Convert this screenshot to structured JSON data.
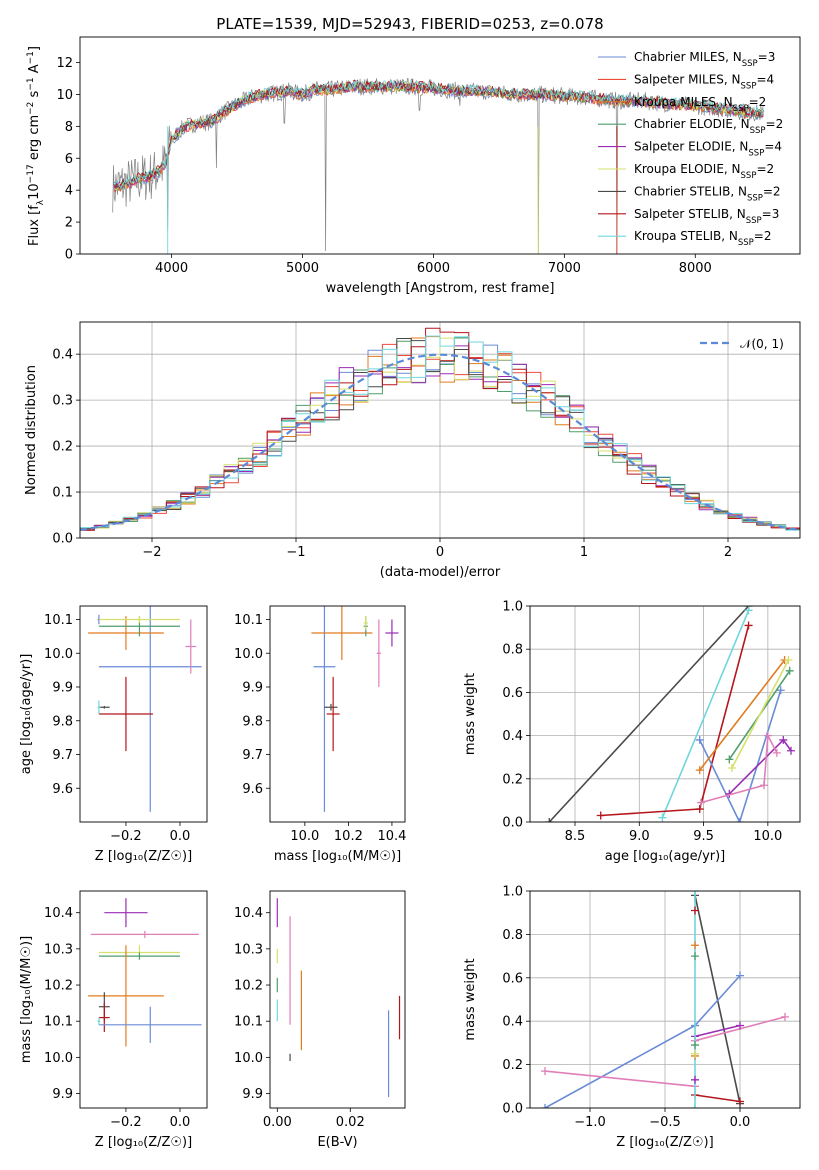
{
  "title": "PLATE=1539, MJD=52943, FIBERID=0253, z=0.078",
  "colors": {
    "Chabrier MILES": "#6a8bd6",
    "Salpeter MILES": "#ee4a3a",
    "Kroupa MILES": "#e07b1f",
    "Chabrier ELODIE": "#4f9e6b",
    "Salpeter ELODIE": "#9a2cb5",
    "Kroupa ELODIE": "#d6e06a",
    "Chabrier STELIB": "#4a4a4a",
    "Salpeter STELIB": "#b5161b",
    "Kroupa STELIB": "#6fd6dc",
    "pink": "#e07eb8",
    "data": "#808080",
    "normal": "#5b8ad8"
  },
  "chart_data": [
    {
      "id": "spectrum",
      "type": "line",
      "title": "PLATE=1539, MJD=52943, FIBERID=0253, z=0.078",
      "xlabel": "wavelength [Angstrom, rest frame]",
      "ylabel_parts": [
        "Flux [f",
        "λ",
        "10",
        "−17",
        " erg cm",
        "−2",
        " s",
        "−1",
        " A",
        "−1",
        "]"
      ],
      "xlim": [
        3300,
        8800
      ],
      "ylim": [
        0,
        13.6
      ],
      "xticks": [
        4000,
        5000,
        6000,
        7000,
        8000
      ],
      "yticks": [
        0,
        2,
        4,
        6,
        8,
        10,
        12
      ],
      "grid": false,
      "legend_position": "right",
      "legend": [
        {
          "name": "Chabrier MILES",
          "nssp": "3"
        },
        {
          "name": "Salpeter MILES",
          "nssp": "4"
        },
        {
          "name": "Kroupa MILES",
          "nssp": "2"
        },
        {
          "name": "Chabrier ELODIE",
          "nssp": "2"
        },
        {
          "name": "Salpeter ELODIE",
          "nssp": "4"
        },
        {
          "name": "Kroupa ELODIE",
          "nssp": "2"
        },
        {
          "name": "Chabrier STELIB",
          "nssp": "2"
        },
        {
          "name": "Salpeter STELIB",
          "nssp": "3"
        },
        {
          "name": "Kroupa STELIB",
          "nssp": "2"
        }
      ],
      "nssp_prefix": ", N",
      "nssp_sub": "SSP",
      "nssp_eq": "=",
      "continuum": [
        [
          3550,
          4.2
        ],
        [
          3650,
          4.4
        ],
        [
          3750,
          4.7
        ],
        [
          3850,
          4.9
        ],
        [
          3950,
          5.6
        ],
        [
          4000,
          7.2
        ],
        [
          4100,
          8.0
        ],
        [
          4200,
          8.2
        ],
        [
          4300,
          8.3
        ],
        [
          4400,
          8.9
        ],
        [
          4500,
          9.4
        ],
        [
          4600,
          9.8
        ],
        [
          4700,
          10.0
        ],
        [
          4800,
          10.1
        ],
        [
          4900,
          10.2
        ],
        [
          5000,
          10.0
        ],
        [
          5100,
          10.3
        ],
        [
          5200,
          10.3
        ],
        [
          5400,
          10.5
        ],
        [
          5600,
          10.5
        ],
        [
          5800,
          10.5
        ],
        [
          6000,
          10.4
        ],
        [
          6200,
          10.2
        ],
        [
          6400,
          10.2
        ],
        [
          6600,
          10.0
        ],
        [
          6800,
          10.0
        ],
        [
          7000,
          9.9
        ],
        [
          7200,
          9.8
        ],
        [
          7400,
          9.6
        ],
        [
          7600,
          9.6
        ],
        [
          7800,
          9.4
        ],
        [
          8000,
          9.3
        ],
        [
          8200,
          9.1
        ],
        [
          8400,
          8.9
        ],
        [
          8500,
          8.8
        ]
      ],
      "features": [
        [
          3970,
          1.5
        ],
        [
          4340,
          5.4
        ],
        [
          4861,
          8.2
        ],
        [
          5175,
          0.2
        ],
        [
          5893,
          9.0
        ],
        [
          6200,
          9.3
        ],
        [
          6563,
          9.8
        ],
        [
          6800,
          0.0
        ],
        [
          7400,
          0.0
        ]
      ]
    },
    {
      "id": "residuals",
      "type": "step",
      "xlabel": "(data-model)/error",
      "ylabel": "Normed distribution",
      "xlim": [
        -2.5,
        2.5
      ],
      "ylim": [
        0,
        0.47
      ],
      "xticks": [
        -2,
        -1,
        0,
        1,
        2
      ],
      "yticks": [
        0.0,
        0.1,
        0.2,
        0.3,
        0.4
      ],
      "grid": true,
      "legend_position": "top-right",
      "legend_label": "𝒩(0, 1)"
    },
    {
      "id": "age-vs-Z",
      "type": "errorbar",
      "xlabel": "Z [log₁₀(Z/Z☉)]",
      "ylabel": "age  [log₁₀(age/yr)]",
      "xlim": [
        -0.37,
        0.1
      ],
      "ylim": [
        9.5,
        10.14
      ],
      "xticks": [
        -0.2,
        0.0
      ],
      "yticks": [
        9.6,
        9.7,
        9.8,
        9.9,
        10.0,
        10.1
      ],
      "points": [
        {
          "x": -0.3,
          "xerr": 0.005,
          "y": 10.1,
          "yerr": 0.014,
          "c": "Chabrier MILES"
        },
        {
          "x": -0.11,
          "xerr": 0.19,
          "y": 9.96,
          "yerr": 0.43,
          "c": "Chabrier MILES"
        },
        {
          "x": -0.2,
          "xerr": 0.14,
          "y": 10.06,
          "yerr": 0.05,
          "c": "Kroupa MILES"
        },
        {
          "x": -0.15,
          "xerr": 0.15,
          "y": 10.08,
          "yerr": 0.03,
          "c": "Chabrier ELODIE"
        },
        {
          "x": -0.15,
          "xerr": 0.15,
          "y": 10.1,
          "yerr": 0.01,
          "c": "Kroupa ELODIE"
        },
        {
          "x": -0.28,
          "xerr": 0.02,
          "y": 9.84,
          "yerr": 0.004,
          "c": "Chabrier STELIB"
        },
        {
          "x": -0.2,
          "xerr": 0.1,
          "y": 9.82,
          "yerr": 0.11,
          "c": "Salpeter STELIB"
        },
        {
          "x": 0.04,
          "xerr": 0.02,
          "y": 10.02,
          "yerr": 0.08,
          "c": "pink"
        },
        {
          "x": -0.3,
          "xerr": 0.005,
          "y": 9.84,
          "yerr": 0.02,
          "c": "Kroupa STELIB"
        }
      ]
    },
    {
      "id": "age-vs-mass",
      "type": "errorbar",
      "xlabel": "mass [log₁₀(M/M☉)]",
      "ylabel": "",
      "xlim": [
        9.84,
        10.46
      ],
      "ylim": [
        9.5,
        10.14
      ],
      "xticks": [
        10.0,
        10.2,
        10.4
      ],
      "yticks": [
        9.6,
        9.7,
        9.8,
        9.9,
        10.0,
        10.1
      ],
      "points": [
        {
          "x": 10.09,
          "xerr": 0.05,
          "y": 9.96,
          "yerr": 0.43,
          "c": "Chabrier MILES"
        },
        {
          "x": 10.17,
          "xerr": 0.14,
          "y": 10.06,
          "yerr": 0.08,
          "c": "Kroupa MILES"
        },
        {
          "x": 10.28,
          "xerr": 0.01,
          "y": 10.08,
          "yerr": 0.03,
          "c": "Chabrier ELODIE"
        },
        {
          "x": 10.28,
          "xerr": 0.01,
          "y": 10.09,
          "yerr": 0.02,
          "c": "Kroupa ELODIE"
        },
        {
          "x": 10.4,
          "xerr": 0.03,
          "y": 10.06,
          "yerr": 0.04,
          "c": "Salpeter ELODIE"
        },
        {
          "x": 10.12,
          "xerr": 0.03,
          "y": 9.84,
          "yerr": 0.01,
          "c": "Chabrier STELIB"
        },
        {
          "x": 10.13,
          "xerr": 0.03,
          "y": 9.82,
          "yerr": 0.11,
          "c": "Salpeter STELIB"
        },
        {
          "x": 10.34,
          "xerr": 0.01,
          "y": 10.0,
          "yerr": 0.1,
          "c": "pink"
        }
      ]
    },
    {
      "id": "weight-vs-age",
      "type": "line",
      "xlabel": "age  [log₁₀(age/yr)]",
      "ylabel": "mass weight",
      "xlim": [
        8.15,
        10.25
      ],
      "ylim": [
        0,
        1
      ],
      "xticks": [
        8.5,
        9.0,
        9.5,
        10.0
      ],
      "yticks": [
        0.0,
        0.2,
        0.4,
        0.6,
        0.8,
        1.0
      ],
      "grid": true,
      "series": [
        {
          "c": "Chabrier STELIB",
          "points": [
            [
              8.3,
              0.0
            ],
            [
              9.85,
              1.0
            ]
          ]
        },
        {
          "c": "Kroupa STELIB",
          "points": [
            [
              9.18,
              0.02
            ],
            [
              9.85,
              0.98
            ]
          ]
        },
        {
          "c": "Salpeter STELIB",
          "points": [
            [
              8.7,
              0.03
            ],
            [
              9.47,
              0.06
            ],
            [
              9.85,
              0.91
            ]
          ]
        },
        {
          "c": "Chabrier MILES",
          "points": [
            [
              9.47,
              0.38
            ],
            [
              9.78,
              0.0
            ],
            [
              10.1,
              0.61
            ]
          ]
        },
        {
          "c": "Kroupa MILES",
          "points": [
            [
              9.47,
              0.24
            ],
            [
              10.13,
              0.75
            ]
          ]
        },
        {
          "c": "Chabrier ELODIE",
          "points": [
            [
              9.7,
              0.29
            ],
            [
              10.17,
              0.7
            ]
          ]
        },
        {
          "c": "Kroupa ELODIE",
          "points": [
            [
              9.72,
              0.25
            ],
            [
              10.16,
              0.75
            ]
          ]
        },
        {
          "c": "Salpeter ELODIE",
          "points": [
            [
              9.7,
              0.13
            ],
            [
              10.12,
              0.38
            ],
            [
              10.18,
              0.33
            ]
          ]
        },
        {
          "c": "pink",
          "points": [
            [
              9.48,
              0.09
            ],
            [
              9.97,
              0.17
            ],
            [
              10.0,
              0.4
            ],
            [
              10.07,
              0.32
            ]
          ]
        }
      ]
    },
    {
      "id": "mass-vs-Z",
      "type": "errorbar",
      "xlabel": "Z [log₁₀(Z/Z☉)]",
      "ylabel": "mass [log₁₀(M/M☉)]",
      "xlim": [
        -0.37,
        0.1
      ],
      "ylim": [
        9.86,
        10.46
      ],
      "xticks": [
        -0.2,
        0.0
      ],
      "yticks": [
        9.9,
        10.0,
        10.1,
        10.2,
        10.3,
        10.4
      ],
      "points": [
        {
          "x": -0.2,
          "xerr": 0.08,
          "y": 10.4,
          "yerr": 0.04,
          "c": "Salpeter ELODIE"
        },
        {
          "x": -0.13,
          "xerr": 0.2,
          "y": 10.34,
          "yerr": 0.01,
          "c": "pink"
        },
        {
          "x": -0.15,
          "xerr": 0.15,
          "y": 10.29,
          "yerr": 0.02,
          "c": "Kroupa ELODIE"
        },
        {
          "x": -0.15,
          "xerr": 0.15,
          "y": 10.28,
          "yerr": 0.01,
          "c": "Chabrier ELODIE"
        },
        {
          "x": -0.2,
          "xerr": 0.14,
          "y": 10.17,
          "yerr": 0.14,
          "c": "Kroupa MILES"
        },
        {
          "x": -0.28,
          "xerr": 0.02,
          "y": 10.14,
          "yerr": 0.04,
          "c": "Chabrier STELIB"
        },
        {
          "x": -0.28,
          "xerr": 0.02,
          "y": 10.11,
          "yerr": 0.04,
          "c": "Salpeter STELIB"
        },
        {
          "x": -0.11,
          "xerr": 0.19,
          "y": 10.09,
          "yerr": 0.05,
          "c": "Chabrier MILES"
        },
        {
          "x": -0.3,
          "xerr": 0.005,
          "y": 10.1,
          "yerr": 0.01,
          "c": "Kroupa STELIB"
        }
      ]
    },
    {
      "id": "mass-vs-ebv",
      "type": "errorbar",
      "xlabel": "E(B-V)",
      "ylabel": "",
      "xlim": [
        -0.002,
        0.035
      ],
      "ylim": [
        9.86,
        10.46
      ],
      "xticks": [
        0.0,
        0.02
      ],
      "yticks": [
        9.9,
        10.0,
        10.1,
        10.2,
        10.3,
        10.4
      ],
      "points": [
        {
          "x": 0.0,
          "xerr": 0.0,
          "y": 10.4,
          "yerr": 0.04,
          "c": "Salpeter ELODIE"
        },
        {
          "x": 0.0,
          "xerr": 0.0,
          "y": 10.28,
          "yerr": 0.02,
          "c": "Kroupa ELODIE"
        },
        {
          "x": 0.0,
          "xerr": 0.0,
          "y": 10.2,
          "yerr": 0.02,
          "c": "Chabrier ELODIE"
        },
        {
          "x": 0.0,
          "xerr": 0.0,
          "y": 10.13,
          "yerr": 0.03,
          "c": "Kroupa STELIB"
        },
        {
          "x": 0.0035,
          "xerr": 0.0,
          "y": 10.24,
          "yerr": 0.15,
          "c": "pink"
        },
        {
          "x": 0.0035,
          "xerr": 0.0,
          "y": 10.0,
          "yerr": 0.01,
          "c": "Chabrier STELIB"
        },
        {
          "x": 0.0066,
          "xerr": 0.0,
          "y": 10.13,
          "yerr": 0.11,
          "c": "Kroupa MILES"
        },
        {
          "x": 0.0305,
          "xerr": 0.0,
          "y": 10.01,
          "yerr": 0.12,
          "c": "Chabrier MILES"
        },
        {
          "x": 0.0335,
          "xerr": 0.0,
          "y": 10.11,
          "yerr": 0.06,
          "c": "Salpeter STELIB"
        }
      ]
    },
    {
      "id": "weight-vs-Z",
      "type": "line",
      "xlabel": "Z [log₁₀(Z/Z☉)]",
      "ylabel": "mass weight",
      "xlim": [
        -1.4,
        0.4
      ],
      "ylim": [
        0,
        1
      ],
      "xticks": [
        -1.0,
        -0.5,
        0.0
      ],
      "yticks": [
        0.0,
        0.2,
        0.4,
        0.6,
        0.8,
        1.0
      ],
      "grid": true,
      "series": [
        {
          "c": "Chabrier STELIB",
          "points": [
            [
              -0.3,
              0.98
            ],
            [
              0.0,
              0.02
            ]
          ]
        },
        {
          "c": "Chabrier MILES",
          "points": [
            [
              -1.3,
              0.0
            ],
            [
              -0.3,
              0.38
            ],
            [
              0.0,
              0.61
            ]
          ]
        },
        {
          "c": "pink",
          "points": [
            [
              -1.3,
              0.17
            ],
            [
              -0.3,
              0.1
            ]
          ]
        },
        {
          "c": "pink",
          "points": [
            [
              -0.3,
              0.31
            ],
            [
              0.3,
              0.42
            ]
          ]
        },
        {
          "c": "Salpeter ELODIE",
          "points": [
            [
              -0.3,
              0.33
            ],
            [
              0.0,
              0.38
            ]
          ]
        },
        {
          "c": "Salpeter STELIB",
          "points": [
            [
              -0.3,
              0.06
            ],
            [
              0.0,
              0.03
            ]
          ]
        },
        {
          "c": "Kroupa STELIB",
          "points": [
            [
              -0.3,
              0.0
            ],
            [
              -0.3,
              1.0
            ]
          ]
        }
      ],
      "markers": [
        {
          "c": "Salpeter STELIB",
          "x": -0.3,
          "y": 0.91
        },
        {
          "c": "Kroupa MILES",
          "x": -0.3,
          "y": 0.75
        },
        {
          "c": "Chabrier ELODIE",
          "x": -0.3,
          "y": 0.7
        },
        {
          "c": "Kroupa MILES",
          "x": -0.3,
          "y": 0.24
        },
        {
          "c": "Kroupa ELODIE",
          "x": -0.3,
          "y": 0.25
        },
        {
          "c": "Salpeter ELODIE",
          "x": -0.3,
          "y": 0.13
        },
        {
          "c": "Chabrier ELODIE",
          "x": -0.3,
          "y": 0.29
        }
      ]
    }
  ]
}
